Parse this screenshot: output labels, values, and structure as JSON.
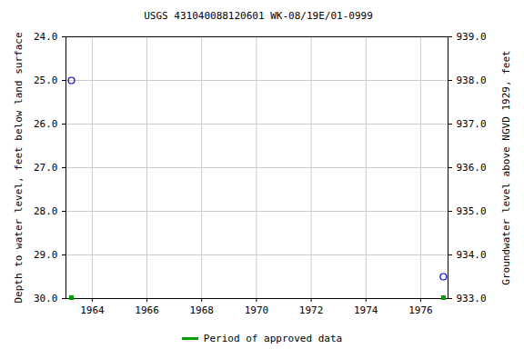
{
  "chart_data": {
    "type": "scatter",
    "title": "USGS 431040088120601 WK-08/19E/01-0999",
    "ylabel": "Depth to water level, feet below land surface",
    "y2label": "Groundwater level above NGVD 1929, feet",
    "x": [
      1963.24,
      1976.83
    ],
    "xlim": [
      1963.04,
      1977.0
    ],
    "xticks": [
      1964,
      1966,
      1968,
      1970,
      1972,
      1974,
      1976
    ],
    "ylim": [
      24,
      30
    ],
    "yticks": [
      {
        "value": 24,
        "label": "24.0"
      },
      {
        "value": 25,
        "label": "25.0"
      },
      {
        "value": 26,
        "label": "26.0"
      },
      {
        "value": 27,
        "label": "27.0"
      },
      {
        "value": 28,
        "label": "28.0"
      },
      {
        "value": 29,
        "label": "29.0"
      },
      {
        "value": 30,
        "label": "30.0"
      }
    ],
    "y2lim": [
      939,
      933
    ],
    "y2ticks": [
      {
        "value": 939,
        "label": "939.0"
      },
      {
        "value": 938,
        "label": "938.0"
      },
      {
        "value": 937,
        "label": "937.0"
      },
      {
        "value": 936,
        "label": "936.0"
      },
      {
        "value": 935,
        "label": "935.0"
      },
      {
        "value": 934,
        "label": "934.0"
      },
      {
        "value": 933,
        "label": "933.0"
      }
    ],
    "grid": true,
    "legend": "bottom",
    "series": [
      {
        "color": "#0000cc",
        "marker": "circle",
        "values": [
          25.0,
          29.5
        ]
      },
      {
        "name": "Period of approved data",
        "color": "#00a000",
        "marker": "square",
        "values": [
          30.0,
          30.0
        ]
      }
    ]
  }
}
